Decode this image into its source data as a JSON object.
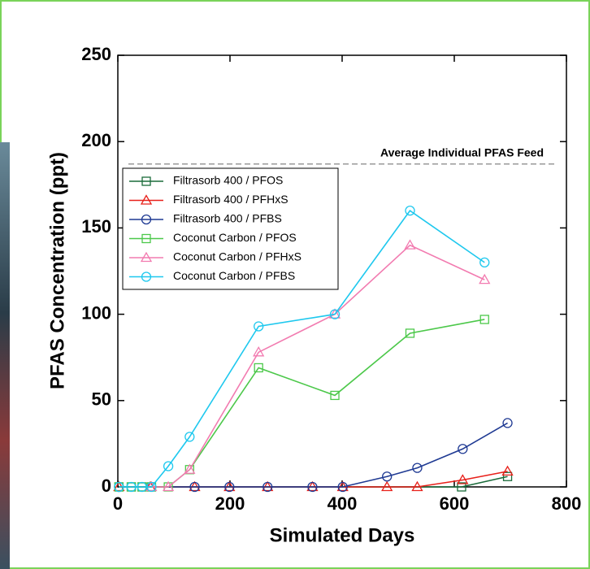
{
  "chart_data": {
    "type": "line",
    "xlabel": "Simulated Days",
    "ylabel": "PFAS Concentration (ppt)",
    "xlim": [
      0,
      800
    ],
    "xticks": [
      0,
      200,
      400,
      600,
      800
    ],
    "ylim": [
      0,
      250
    ],
    "yticks": [
      0,
      50,
      100,
      150,
      200,
      250
    ],
    "grid": false,
    "legend": "upper left",
    "feed_line": {
      "label": "Average Individual PFAS Feed",
      "value": 187
    },
    "series": [
      {
        "name": "Filtrasorb 400 / PFOS",
        "color": "#1a6b3a",
        "marker": "square",
        "x": [
          2,
          24,
          43,
          60,
          613,
          695
        ],
        "values": [
          0,
          0,
          0,
          0,
          0,
          6
        ]
      },
      {
        "name": "Filtrasorb 400 / PFHxS",
        "color": "#e8201a",
        "marker": "triangle",
        "x": [
          2,
          58,
          137,
          199,
          267,
          347,
          401,
          480,
          534,
          615,
          695
        ],
        "values": [
          0,
          0,
          0,
          0,
          0,
          0,
          0,
          0,
          0,
          4,
          9
        ]
      },
      {
        "name": "Filtrasorb 400 / PFBS",
        "color": "#1f3a93",
        "marker": "circle",
        "x": [
          2,
          137,
          199,
          267,
          347,
          401,
          480,
          534,
          615,
          695
        ],
        "values": [
          0,
          0,
          0,
          0,
          0,
          0,
          6,
          11,
          22,
          37
        ]
      },
      {
        "name": "Coconut Carbon / PFOS",
        "color": "#4cc84a",
        "marker": "square",
        "x": [
          2,
          24,
          43,
          60,
          90,
          128,
          251,
          387,
          521,
          654
        ],
        "values": [
          0,
          0,
          0,
          0,
          0,
          10,
          69,
          53,
          89,
          97
        ]
      },
      {
        "name": "Coconut Carbon / PFHxS",
        "color": "#f27bb0",
        "marker": "triangle",
        "x": [
          60,
          90,
          128,
          251,
          387,
          521,
          654
        ],
        "values": [
          0,
          0,
          10,
          78,
          100,
          140,
          120
        ]
      },
      {
        "name": "Coconut Carbon / PFBS",
        "color": "#1ec8ee",
        "marker": "circle",
        "x": [
          2,
          24,
          43,
          60,
          90,
          128,
          251,
          387,
          521,
          654
        ],
        "values": [
          0,
          0,
          0,
          0,
          12,
          29,
          93,
          100,
          160,
          130
        ]
      }
    ]
  }
}
